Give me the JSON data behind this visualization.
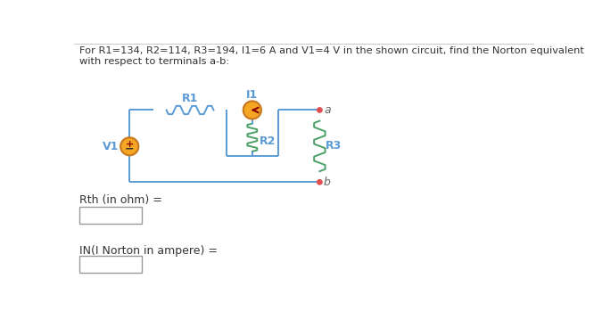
{
  "title_line1": "For R1=134, R2=114, R3=194, I1=6 A and V1=4 V in the shown circuit, find the Norton equivalent",
  "title_line2": "with respect to terminals a-b:",
  "label_R1": "R1",
  "label_R2": "R2",
  "label_R3": "R3",
  "label_I1": "I1",
  "label_V1": "V1",
  "label_a": "a",
  "label_b": "b",
  "label_Rth": "Rth (in ohm) =",
  "label_IN": "IN(I Norton in ampere) =",
  "wire_color": "#5b9bd5",
  "res_color_blue": "#5b9bd5",
  "res_color_green": "#4aa066",
  "component_fill": "#f5a623",
  "component_border": "#c87820",
  "arrow_color": "#8B0000",
  "terminal_color": "#e05050",
  "text_color_blue": "#5b9bd5",
  "text_color_dark": "#333333",
  "bg_color": "#ffffff",
  "title_color": "#333333",
  "box_edge_color": "#999999",
  "label_text_color": "#4a4a4a"
}
